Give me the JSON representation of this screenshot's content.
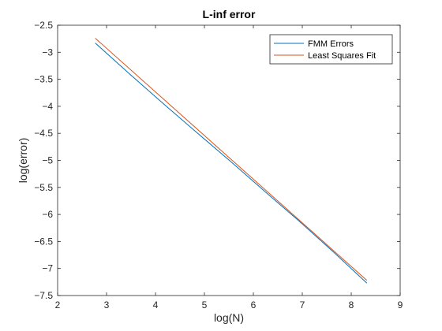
{
  "chart_data": {
    "type": "line",
    "title": "L-inf error",
    "xlabel": "log(N)",
    "ylabel": "log(error)",
    "xlim": [
      2,
      9
    ],
    "ylim": [
      -7.5,
      -2.5
    ],
    "xticks": [
      2,
      3,
      4,
      5,
      6,
      7,
      8,
      9
    ],
    "xtick_labels": [
      "2",
      "3",
      "4",
      "5",
      "6",
      "7",
      "8",
      "9"
    ],
    "yticks": [
      -2.5,
      -3,
      -3.5,
      -4,
      -4.5,
      -5,
      -5.5,
      -6,
      -6.5,
      -7,
      -7.5
    ],
    "ytick_labels": [
      "−2.5",
      "−3",
      "−3.5",
      "−4",
      "−4.5",
      "−5",
      "−5.5",
      "−6",
      "−6.5",
      "−7",
      "−7.5"
    ],
    "grid": false,
    "legend_position": "top-right",
    "series": [
      {
        "name": "FMM Errors",
        "color": "#0072BD",
        "x": [
          2.77,
          3.47,
          4.16,
          4.85,
          5.55,
          6.24,
          6.93,
          7.62,
          8.32
        ],
        "y": [
          -2.83,
          -3.4,
          -3.95,
          -4.49,
          -5.03,
          -5.58,
          -6.12,
          -6.68,
          -7.27
        ]
      },
      {
        "name": "Least Squares Fit",
        "color": "#D95319",
        "x": [
          2.77,
          8.32
        ],
        "y": [
          -2.74,
          -7.22
        ]
      }
    ]
  }
}
